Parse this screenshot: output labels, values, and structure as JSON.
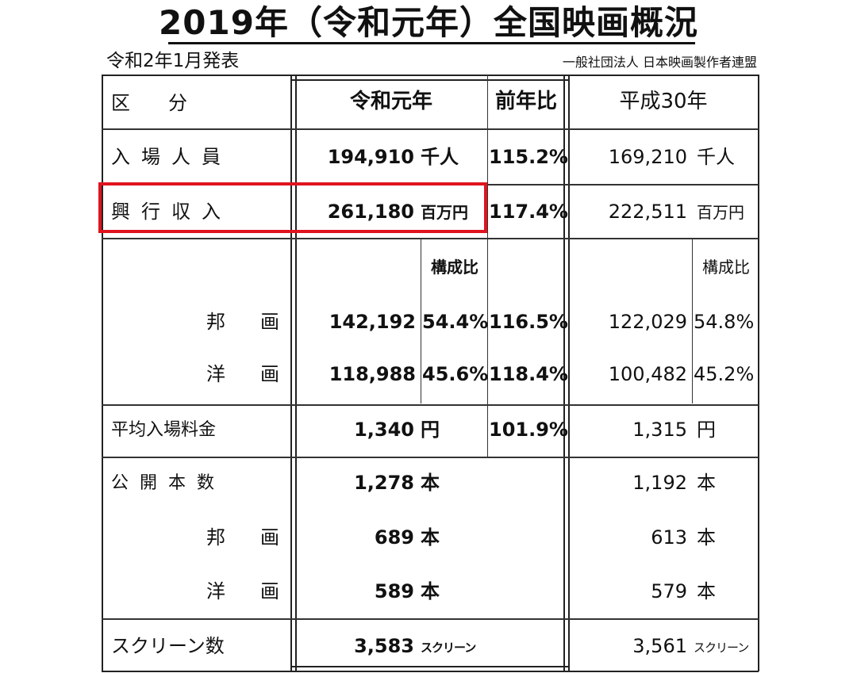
{
  "title": "2019年（令和元年）全国映画概況",
  "published": "令和2年1月発表",
  "publisher": "一般社団法人 日本映画製作者連盟",
  "headers": {
    "category": "区　　分",
    "current_year": "令和元年",
    "yoy": "前年比",
    "previous_year": "平成30年",
    "composition": "構成比"
  },
  "rows": {
    "attendance": {
      "label": "入場人員",
      "current": "194,910",
      "current_unit": "千人",
      "yoy": "115.2%",
      "previous": "169,210",
      "previous_unit": "千人"
    },
    "box_office": {
      "label": "興行収入",
      "current": "261,180",
      "current_unit": "百万円",
      "yoy": "117.4%",
      "previous": "222,511",
      "previous_unit": "百万円"
    },
    "japanese_films": {
      "label": "邦　画",
      "current": "142,192",
      "current_share": "54.4%",
      "yoy": "116.5%",
      "previous": "122,029",
      "previous_share": "54.8%"
    },
    "foreign_films": {
      "label": "洋　画",
      "current": "118,988",
      "current_share": "45.6%",
      "yoy": "118.4%",
      "previous": "100,482",
      "previous_share": "45.2%"
    },
    "avg_ticket_price": {
      "label": "平均入場料金",
      "current": "1,340",
      "current_unit": "円",
      "yoy": "101.9%",
      "previous": "1,315",
      "previous_unit": "円"
    },
    "releases": {
      "label": "公開本数",
      "current": "1,278",
      "current_unit": "本",
      "previous": "1,192",
      "previous_unit": "本"
    },
    "releases_japanese": {
      "label": "邦　画",
      "current": "689",
      "current_unit": "本",
      "previous": "613",
      "previous_unit": "本"
    },
    "releases_foreign": {
      "label": "洋　画",
      "current": "589",
      "current_unit": "本",
      "previous": "579",
      "previous_unit": "本"
    },
    "screens": {
      "label": "スクリーン数",
      "current": "3,583",
      "current_unit": "スクリーン",
      "previous": "3,561",
      "previous_unit": "スクリーン"
    }
  },
  "colors": {
    "highlight": "#e0141e",
    "text": "#111111"
  }
}
